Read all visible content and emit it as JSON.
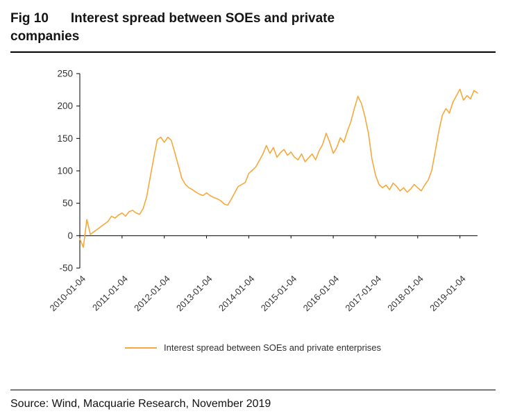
{
  "header": {
    "figure_label": "Fig 10",
    "title_line1": "Interest spread between SOEs and private",
    "title_line2": "companies"
  },
  "legend": {
    "label": "Interest spread between SOEs and private enterprises"
  },
  "footer": {
    "source": "Source: Wind, Macquarie Research, November 2019"
  },
  "chart_data": {
    "type": "line",
    "title": "Interest spread between SOEs and private companies",
    "xlabel": "",
    "ylabel": "",
    "ylim": [
      -50,
      250
    ],
    "y_ticks": [
      250,
      200,
      150,
      100,
      50,
      0,
      -50
    ],
    "grid": false,
    "legend_position": "bottom-center",
    "x_start": "2010-01",
    "x_end": "2019-06",
    "x_frequency": "monthly",
    "x_tick_labels": [
      "2010-01-04",
      "2011-01-04",
      "2012-01-04",
      "2013-01-04",
      "2014-01-04",
      "2015-01-04",
      "2016-01-04",
      "2017-01-04",
      "2018-01-04",
      "2019-01-04"
    ],
    "x_tick_indices": [
      0,
      12,
      24,
      36,
      48,
      60,
      72,
      84,
      96,
      108
    ],
    "axis_color": "#000000",
    "tick_label_color": "#333333",
    "series": [
      {
        "name": "Interest spread between SOEs and private enterprises",
        "color": "#F5A83C",
        "values": [
          -5,
          -18,
          25,
          2,
          6,
          10,
          14,
          18,
          22,
          30,
          27,
          32,
          35,
          30,
          37,
          39,
          35,
          33,
          42,
          60,
          90,
          120,
          148,
          152,
          144,
          152,
          147,
          128,
          108,
          88,
          79,
          74,
          71,
          67,
          64,
          62,
          66,
          62,
          59,
          57,
          54,
          49,
          47,
          56,
          66,
          76,
          79,
          82,
          96,
          101,
          106,
          116,
          126,
          139,
          127,
          136,
          121,
          128,
          133,
          124,
          129,
          121,
          117,
          126,
          114,
          120,
          126,
          117,
          131,
          141,
          158,
          144,
          127,
          136,
          151,
          144,
          161,
          176,
          196,
          215,
          204,
          184,
          158,
          118,
          94,
          79,
          74,
          78,
          71,
          81,
          76,
          69,
          74,
          67,
          72,
          79,
          74,
          69,
          78,
          86,
          101,
          131,
          161,
          186,
          196,
          189,
          206,
          216,
          226,
          209,
          216,
          211,
          224,
          220
        ]
      }
    ]
  }
}
